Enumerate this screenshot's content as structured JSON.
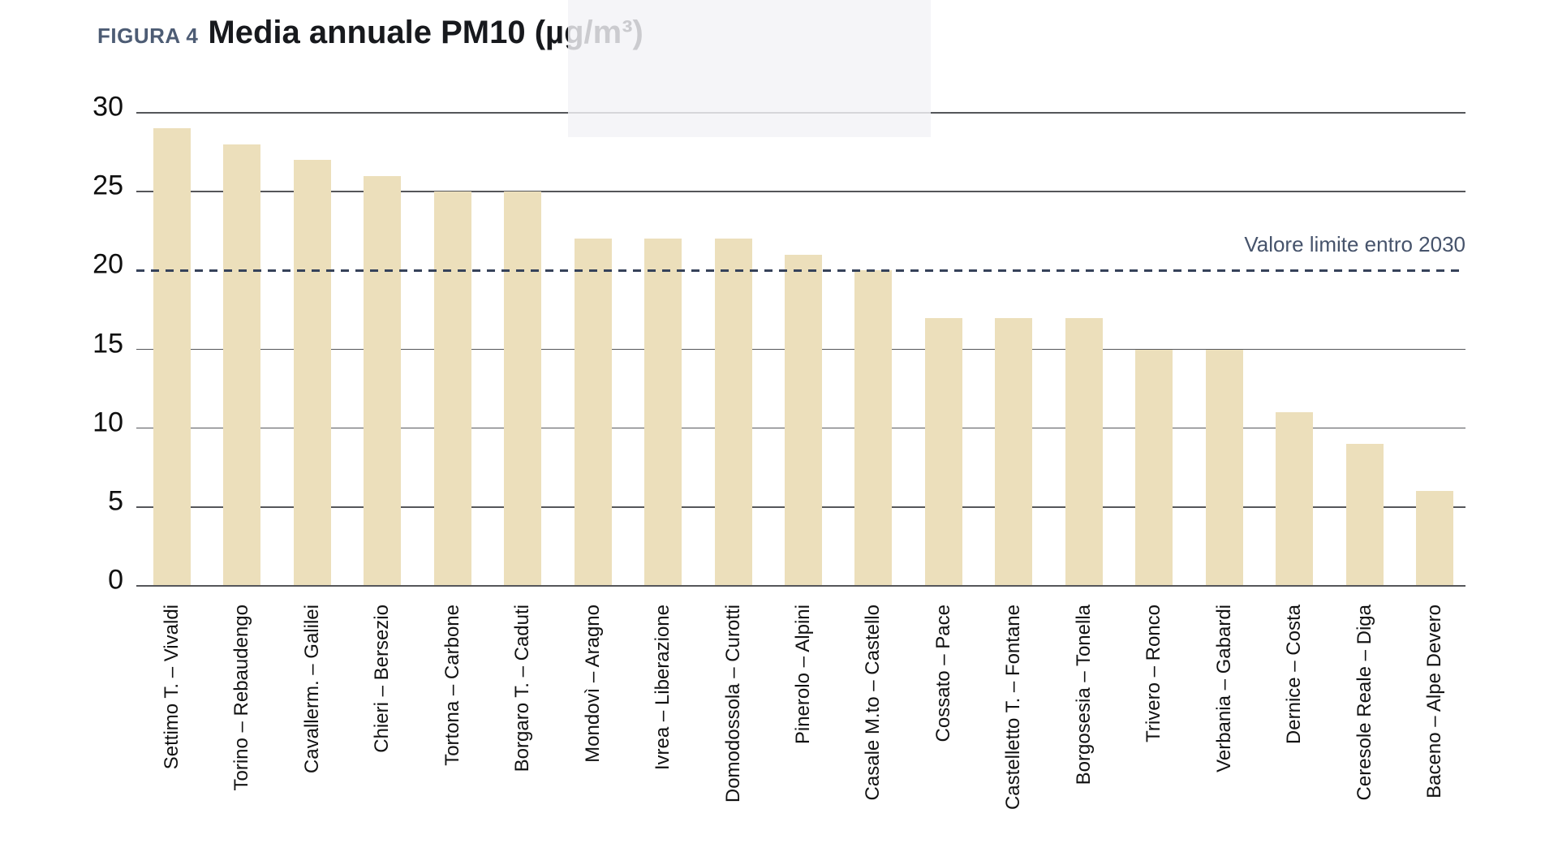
{
  "figure": {
    "prefix": "FIGURA 4",
    "title": "Media annuale PM10 (µg/m³)"
  },
  "colors": {
    "bar": "#ecdfbb",
    "grid": "#55565a",
    "reference": "#36425a",
    "title_prefix": "#4d5c74",
    "title": "#17191d",
    "background": "#ffffff"
  },
  "chart_data": {
    "type": "bar",
    "title": "Media annuale PM10 (µg/m³)",
    "xlabel": "",
    "ylabel": "",
    "ylim": [
      0,
      30
    ],
    "yticks": [
      0,
      5,
      10,
      15,
      20,
      25,
      30
    ],
    "grid": true,
    "legend_position": "none",
    "bar_color": "#ecdfbb",
    "categories": [
      "Settimo T. – Vivaldi",
      "Torino – Rebaudengo",
      "Cavallerm. – Galilei",
      "Chieri – Bersezio",
      "Tortona – Carbone",
      "Borgaro T. – Caduti",
      "Mondovì – Aragno",
      "Ivrea – Liberazione",
      "Domodossola – Curotti",
      "Pinerolo – Alpini",
      "Casale M.to – Castello",
      "Cossato – Pace",
      "Castelletto T. – Fontane",
      "Borgosesia – Tonella",
      "Trivero – Ronco",
      "Verbania – Gabardi",
      "Dernice – Costa",
      "Ceresole Reale – Diga",
      "Baceno – Alpe Devero"
    ],
    "values": [
      29,
      28,
      27,
      26,
      25,
      25,
      22,
      22,
      22,
      21,
      20,
      17,
      17,
      17,
      15,
      15,
      11,
      9,
      6
    ],
    "reference_line": {
      "value": 20,
      "label": "Valore limite entro 2030",
      "style": "dashed",
      "color": "#36425a"
    }
  }
}
